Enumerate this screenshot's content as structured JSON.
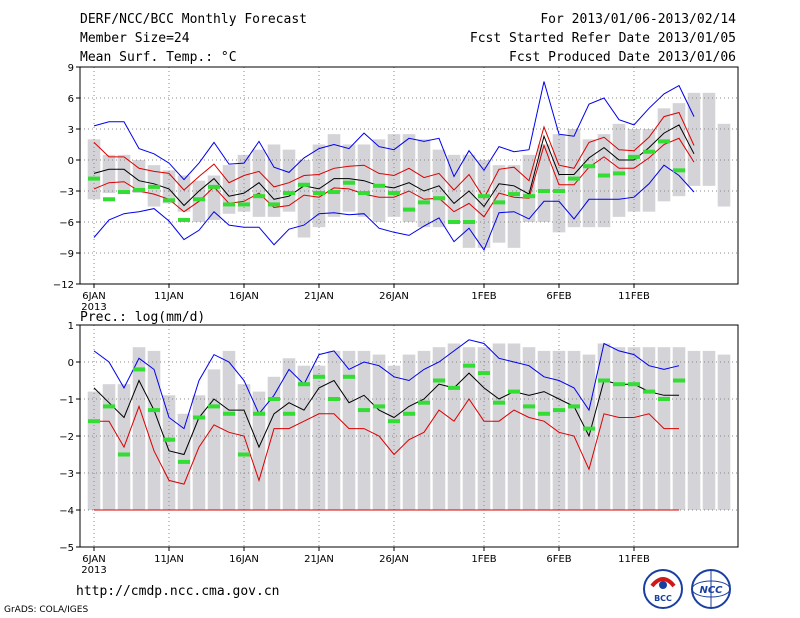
{
  "header": {
    "title": "DERF/NCC/BCC Monthly Forecast",
    "member_size": "Member Size=24",
    "variable": "Mean Surf. Temp.: °C",
    "period": "For 2013/01/06-2013/02/14",
    "started": "Fcst Started Refer Date 2013/01/05",
    "produced": "Fcst Produced Date 2013/01/06"
  },
  "footer": {
    "url": "http://cmdp.ncc.cma.gov.cn",
    "grads": "GrADS: COLA/IGES",
    "logo1": "BCC",
    "logo2": "NCC"
  },
  "colors": {
    "upper": "#0000ee",
    "ens_upper": "#dd0000",
    "mean": "#000000",
    "clim_bar": "#d3d3d8",
    "obs": "#33dd33",
    "grid": "#888888"
  },
  "chart_data": [
    {
      "type": "line",
      "title": "",
      "ylabel": "Mean Surf. Temp.: °C",
      "ylim": [
        -12,
        9
      ],
      "yticks": [
        -12,
        -9,
        -6,
        -3,
        0,
        3,
        6,
        9
      ],
      "xlim": [
        1,
        40
      ],
      "xticks": [
        {
          "x": 1,
          "label": "6JAN",
          "year": "2013"
        },
        {
          "x": 6,
          "label": "11JAN"
        },
        {
          "x": 11,
          "label": "16JAN"
        },
        {
          "x": 16,
          "label": "21JAN"
        },
        {
          "x": 21,
          "label": "26JAN"
        },
        {
          "x": 27,
          "label": "1FEB"
        },
        {
          "x": 32,
          "label": "6FEB"
        },
        {
          "x": 37,
          "label": "11FEB"
        }
      ],
      "bars": {
        "name": "climate range",
        "low": [
          -3.8,
          -3.2,
          -3.0,
          -3.2,
          -4.5,
          -4.2,
          -5.0,
          -6.0,
          -5.8,
          -5.2,
          -5.0,
          -5.5,
          -5.5,
          -5.0,
          -7.5,
          -6.5,
          -5.5,
          -5.0,
          -5.5,
          -6.0,
          -5.5,
          -6.0,
          -6.5,
          -6.5,
          -6.0,
          -8.5,
          -8.5,
          -8.0,
          -8.5,
          -6.0,
          -6.0,
          -7.0,
          -6.5,
          -6.5,
          -6.5,
          -5.5,
          -5.0,
          -5.0,
          -4.0,
          -3.5,
          -2.5,
          -2.5,
          -4.5
        ],
        "high": [
          2.0,
          0.5,
          0.5,
          0.0,
          -0.5,
          -1.0,
          -1.5,
          -2.0,
          -1.5,
          -0.5,
          0.5,
          1.0,
          1.5,
          1.0,
          0.0,
          1.5,
          2.5,
          1.5,
          1.5,
          2.0,
          2.5,
          2.5,
          2.0,
          1.0,
          0.5,
          0.5,
          0.0,
          -0.5,
          -0.5,
          0.5,
          1.5,
          2.5,
          3.0,
          2.0,
          2.5,
          3.5,
          3.0,
          3.0,
          5.0,
          5.5,
          6.5,
          6.5,
          3.5
        ]
      },
      "series": [
        {
          "name": "ensemble max",
          "color": "#0000ee",
          "values": [
            3.3,
            3.7,
            3.7,
            1.1,
            0.6,
            -0.3,
            -1.9,
            -0.3,
            1.7,
            -0.4,
            -0.3,
            1.8,
            -0.7,
            -1.2,
            0.2,
            1.1,
            1.5,
            1.1,
            2.6,
            1.3,
            1.0,
            2.1,
            1.8,
            2.1,
            -1.6,
            0.9,
            -1.0,
            1.3,
            0.8,
            1.0,
            7.6,
            2.5,
            2.3,
            5.4,
            6.0,
            3.9,
            3.4,
            5.0,
            6.4,
            7.2,
            4.2
          ]
        },
        {
          "name": "ensemble upper",
          "color": "#dd0000",
          "values": [
            1.7,
            0.3,
            0.3,
            -0.8,
            -1.1,
            -1.3,
            -2.9,
            -1.6,
            -0.4,
            -2.2,
            -1.5,
            -1.1,
            -2.6,
            -2.2,
            -1.5,
            -1.4,
            -0.8,
            -0.6,
            -0.5,
            -1.3,
            -1.5,
            -0.8,
            -1.7,
            -1.3,
            -2.9,
            -1.4,
            -3.7,
            -0.9,
            -0.7,
            -2.0,
            3.2,
            -0.5,
            -0.8,
            1.7,
            2.2,
            1.0,
            0.9,
            2.2,
            4.2,
            4.6,
            1.4
          ]
        },
        {
          "name": "ensemble mean",
          "color": "#000000",
          "values": [
            -1.3,
            -0.9,
            -0.9,
            -2.0,
            -2.3,
            -2.8,
            -4.4,
            -3.0,
            -1.8,
            -3.5,
            -3.2,
            -2.2,
            -3.8,
            -3.5,
            -2.5,
            -2.8,
            -1.8,
            -1.8,
            -2.0,
            -2.5,
            -2.7,
            -2.2,
            -3.0,
            -2.5,
            -4.2,
            -3.0,
            -4.5,
            -2.3,
            -2.5,
            -3.3,
            2.3,
            -1.4,
            -1.4,
            0.2,
            1.2,
            0.0,
            0.0,
            1.2,
            2.6,
            3.4,
            0.6
          ]
        },
        {
          "name": "ensemble lower",
          "color": "#dd0000",
          "values": [
            -2.8,
            -2.2,
            -2.1,
            -3.0,
            -3.3,
            -3.8,
            -5.0,
            -4.0,
            -2.6,
            -4.2,
            -4.0,
            -3.2,
            -4.6,
            -4.4,
            -3.4,
            -3.6,
            -2.7,
            -2.8,
            -3.3,
            -3.6,
            -3.6,
            -3.0,
            -3.8,
            -3.7,
            -5.0,
            -4.2,
            -5.5,
            -3.2,
            -3.6,
            -3.7,
            1.4,
            -2.4,
            -2.4,
            -0.7,
            0.3,
            -0.8,
            -0.8,
            0.2,
            1.5,
            2.1,
            -0.2
          ]
        },
        {
          "name": "ensemble min",
          "color": "#0000ee",
          "values": [
            -7.5,
            -5.8,
            -5.2,
            -5.0,
            -4.7,
            -5.9,
            -7.7,
            -6.8,
            -5.0,
            -6.3,
            -6.5,
            -6.5,
            -8.2,
            -6.7,
            -6.3,
            -5.2,
            -5.1,
            -5.3,
            -5.2,
            -6.6,
            -7.0,
            -7.3,
            -6.4,
            -5.6,
            -7.9,
            -6.6,
            -8.7,
            -5.1,
            -5.0,
            -5.7,
            -4.0,
            -4.0,
            -5.7,
            -3.8,
            -3.8,
            -3.8,
            -3.6,
            -2.3,
            -0.5,
            -1.5,
            -3.1
          ]
        }
      ],
      "obs": [
        -1.8,
        -3.8,
        -3.1,
        -2.9,
        -2.6,
        -3.9,
        -5.8,
        -3.8,
        -2.6,
        -4.3,
        -4.3,
        -3.5,
        -4.3,
        -3.2,
        -2.4,
        -3.2,
        -3.1,
        -2.2,
        -3.2,
        -2.5,
        -3.2,
        -4.8,
        -4.1,
        -3.7,
        -6.0,
        -6.0,
        -3.5,
        -4.1,
        -3.3,
        -3.5,
        -3.0,
        -3.0,
        -1.8,
        -0.6,
        -1.5,
        -1.3,
        0.3,
        0.8,
        1.8,
        -1.0
      ]
    },
    {
      "type": "line",
      "title": "",
      "ylabel": "Prec.: log(mm/d)",
      "ylim": [
        -5,
        1
      ],
      "yticks": [
        -5,
        -4,
        -3,
        -2,
        -1,
        0,
        1
      ],
      "xlim": [
        1,
        40
      ],
      "xticks": [
        {
          "x": 1,
          "label": "6JAN",
          "year": "2013"
        },
        {
          "x": 6,
          "label": "11JAN"
        },
        {
          "x": 11,
          "label": "16JAN"
        },
        {
          "x": 16,
          "label": "21JAN"
        },
        {
          "x": 21,
          "label": "26JAN"
        },
        {
          "x": 27,
          "label": "1FEB"
        },
        {
          "x": 32,
          "label": "6FEB"
        },
        {
          "x": 37,
          "label": "11FEB"
        }
      ],
      "bars": {
        "name": "climate range",
        "low_all": -4,
        "high": [
          -0.8,
          -0.6,
          -0.6,
          0.4,
          0.3,
          -0.9,
          -1.4,
          -0.9,
          -0.2,
          0.3,
          -0.6,
          -0.8,
          -0.4,
          0.1,
          -0.1,
          -0.1,
          0.3,
          0.3,
          0.3,
          0.2,
          -0.1,
          0.2,
          0.3,
          0.4,
          0.5,
          0.4,
          0.4,
          0.5,
          0.5,
          0.4,
          0.3,
          0.3,
          0.3,
          0.2,
          0.5,
          0.4,
          0.4,
          0.4,
          0.4,
          0.4,
          0.3,
          0.3,
          0.2
        ]
      },
      "series": [
        {
          "name": "ensemble max",
          "color": "#0000ee",
          "values": [
            0.3,
            0.0,
            -0.7,
            0.1,
            -0.2,
            -1.5,
            -1.8,
            -0.5,
            0.2,
            0.0,
            -0.5,
            -1.4,
            -0.9,
            -0.2,
            -0.6,
            0.2,
            0.3,
            -0.2,
            0.0,
            -0.1,
            -0.4,
            -0.5,
            -0.2,
            0.0,
            0.3,
            0.6,
            0.5,
            0.1,
            0.0,
            -0.1,
            -0.4,
            -0.5,
            -0.7,
            -1.3,
            0.5,
            0.3,
            0.2,
            -0.1,
            -0.2,
            -0.1
          ]
        },
        {
          "name": "ensemble mean",
          "color": "#000000",
          "values": [
            -0.7,
            -1.1,
            -1.5,
            -0.5,
            -1.3,
            -2.4,
            -2.5,
            -1.5,
            -1.0,
            -1.3,
            -1.3,
            -2.3,
            -1.4,
            -1.1,
            -1.3,
            -0.7,
            -0.5,
            -1.1,
            -0.9,
            -1.3,
            -1.5,
            -1.2,
            -1.0,
            -0.6,
            -0.7,
            -0.3,
            -0.7,
            -1.0,
            -0.8,
            -0.9,
            -0.8,
            -1.0,
            -1.2,
            -2.0,
            -0.5,
            -0.6,
            -0.6,
            -0.8,
            -0.9,
            -0.9
          ]
        },
        {
          "name": "ensemble lower",
          "color": "#dd0000",
          "values": [
            -1.6,
            -1.6,
            -2.3,
            -1.2,
            -2.4,
            -3.2,
            -3.3,
            -2.3,
            -1.7,
            -1.9,
            -2.0,
            -3.2,
            -1.8,
            -1.8,
            -1.6,
            -1.4,
            -1.4,
            -1.8,
            -1.8,
            -2.0,
            -2.5,
            -2.1,
            -1.9,
            -1.3,
            -1.6,
            -1.0,
            -1.6,
            -1.6,
            -1.3,
            -1.5,
            -1.6,
            -1.9,
            -2.0,
            -2.9,
            -1.4,
            -1.5,
            -1.5,
            -1.4,
            -1.8,
            -1.8
          ]
        }
      ],
      "obs": [
        -1.6,
        -1.2,
        -2.5,
        -0.2,
        -1.3,
        -2.1,
        -2.7,
        -1.5,
        -1.2,
        -1.4,
        -2.5,
        -1.4,
        -1.0,
        -1.4,
        -0.6,
        -0.4,
        -1.0,
        -0.4,
        -1.3,
        -1.2,
        -1.6,
        -1.4,
        -1.1,
        -0.5,
        -0.7,
        -0.1,
        -0.3,
        -1.1,
        -0.8,
        -1.2,
        -1.4,
        -1.3,
        -1.2,
        -1.8,
        -0.5,
        -0.6,
        -0.6,
        -0.8,
        -1.0,
        -0.5
      ],
      "floor": -4
    }
  ]
}
